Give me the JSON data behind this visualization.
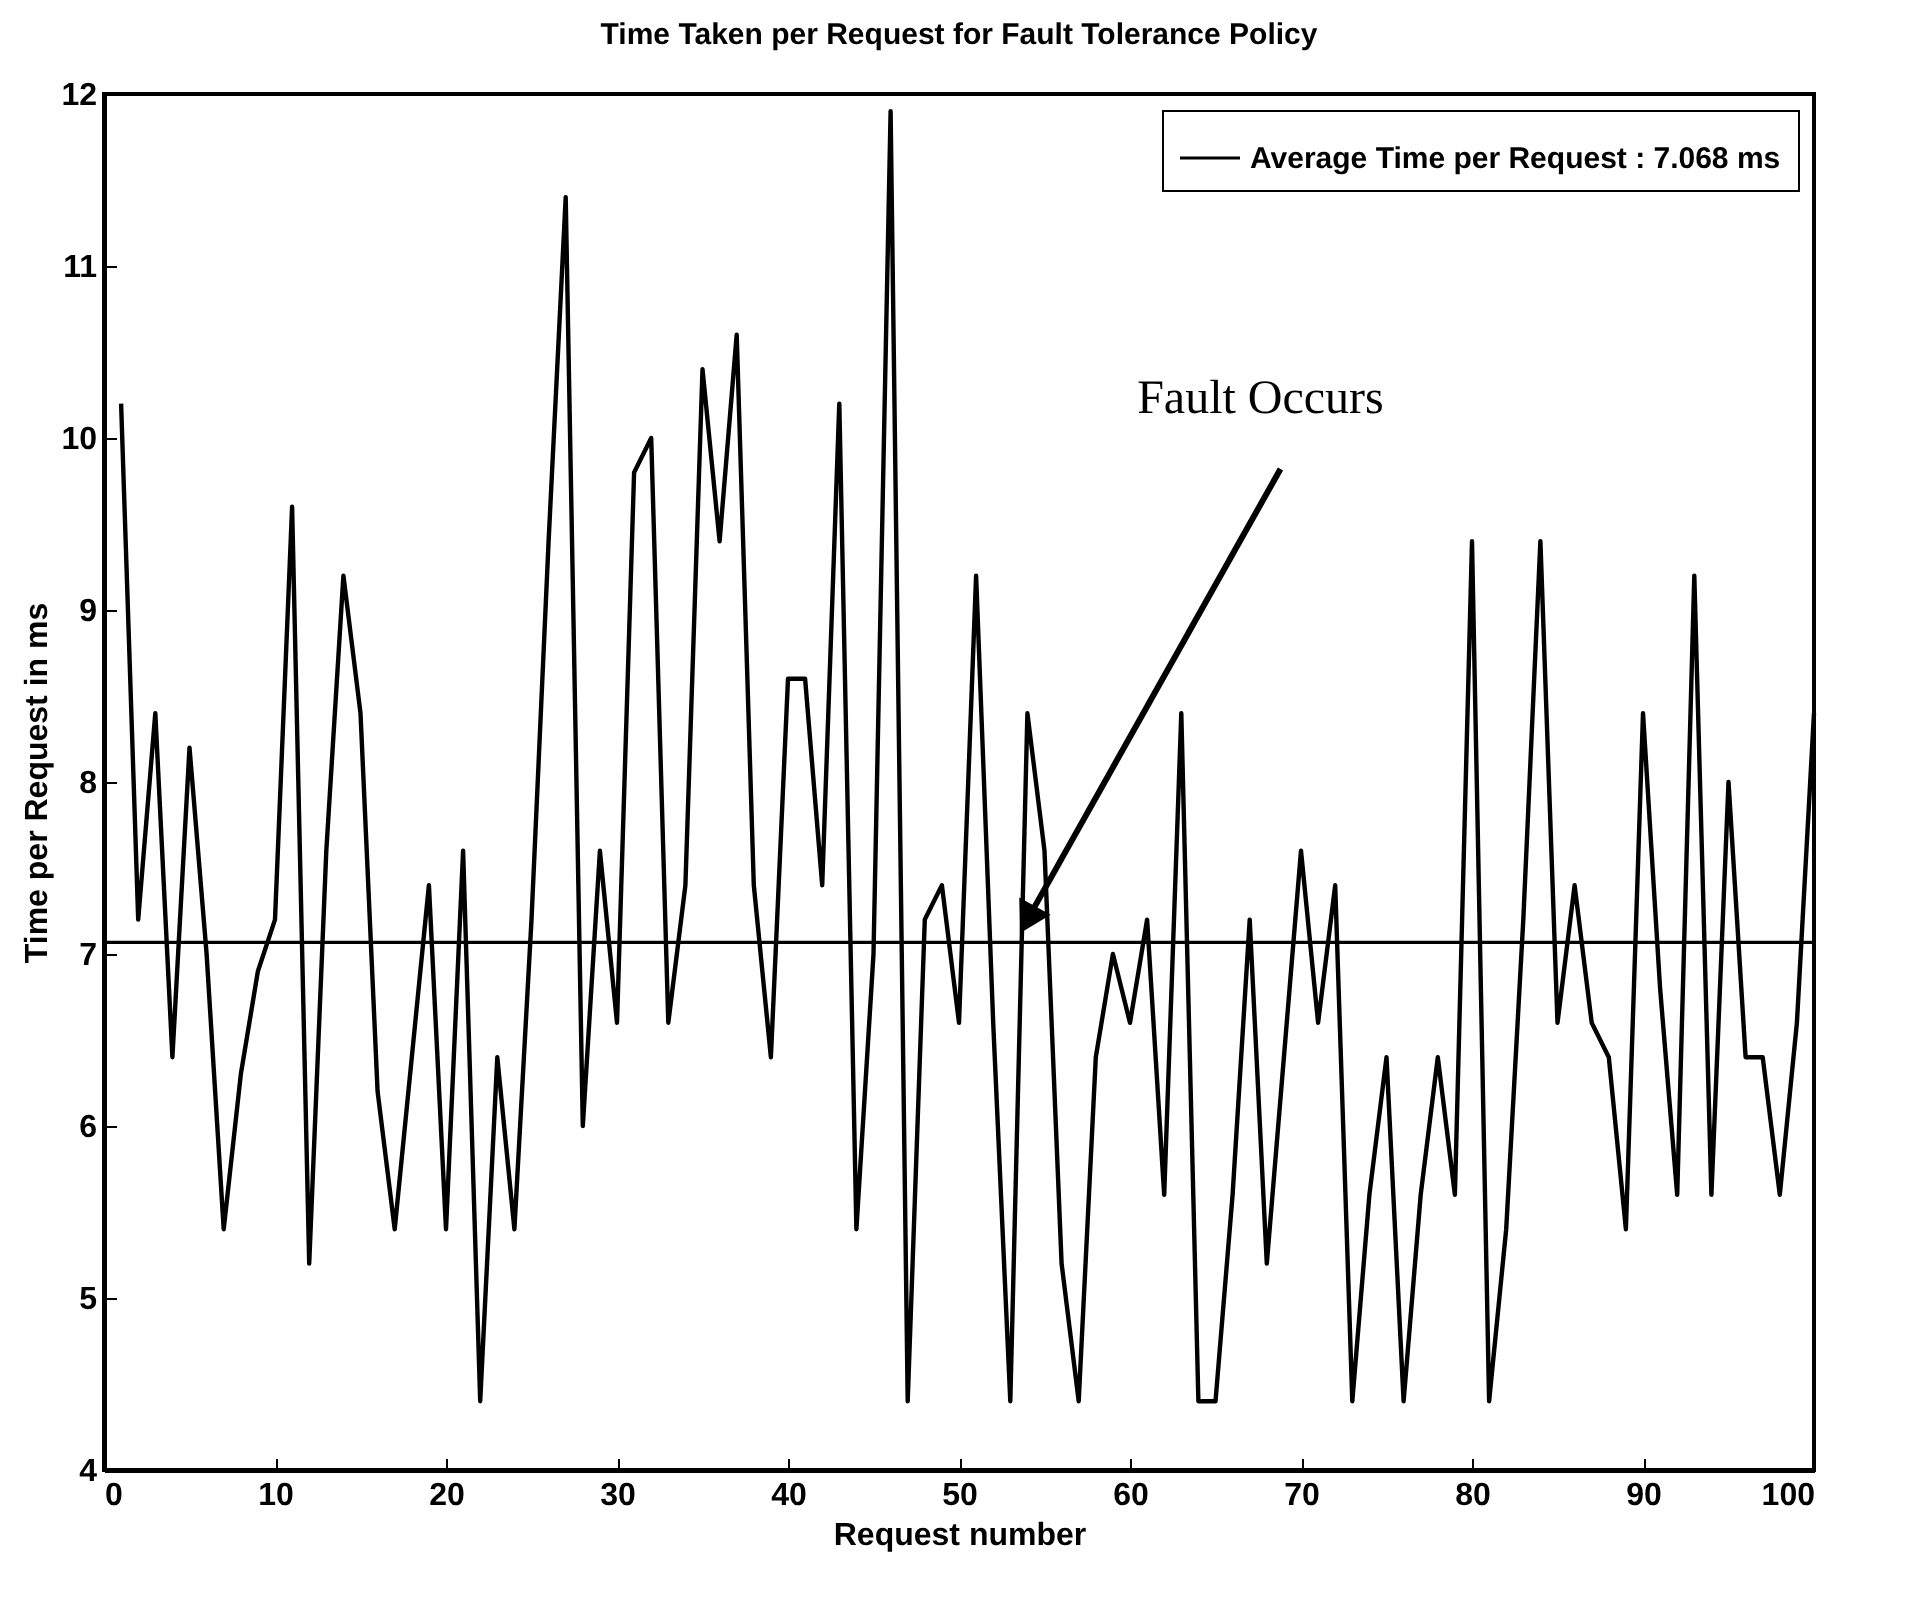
{
  "chart_data": {
    "type": "line",
    "title": "Time Taken per Request for Fault Tolerance Policy",
    "xlabel": "Request number",
    "ylabel": "Time per Request in ms",
    "xlim": [
      0,
      100
    ],
    "xticks": [
      0,
      10,
      20,
      30,
      40,
      50,
      60,
      70,
      80,
      90,
      100
    ],
    "ylim": [
      4,
      12
    ],
    "yticks": [
      4,
      5,
      6,
      7,
      8,
      9,
      10,
      11,
      12
    ],
    "grid": false,
    "legend": "top right",
    "marker": "none",
    "line_style": "solid",
    "annotations": [
      {
        "text": "Fault Occurs",
        "x": 54,
        "y": 7.2
      }
    ],
    "series": [
      {
        "color": "#000000",
        "x": [
          1,
          2,
          3,
          4,
          5,
          6,
          7,
          8,
          9,
          10,
          11,
          12,
          13,
          14,
          15,
          16,
          17,
          18,
          19,
          20,
          21,
          22,
          23,
          24,
          25,
          26,
          27,
          28,
          29,
          30,
          31,
          32,
          33,
          34,
          35,
          36,
          37,
          38,
          39,
          40,
          41,
          42,
          43,
          44,
          45,
          46,
          47,
          48,
          49,
          50,
          51,
          52,
          53,
          54,
          55,
          56,
          57,
          58,
          59,
          60,
          61,
          62,
          63,
          64,
          65,
          66,
          67,
          68,
          69,
          70,
          71,
          72,
          73,
          74,
          75,
          76,
          77,
          78,
          79,
          80,
          81,
          82,
          83,
          84,
          85,
          86,
          87,
          88,
          89,
          90,
          91,
          92,
          93,
          94,
          95,
          96,
          97,
          98,
          99,
          100
        ],
        "values": [
          10.2,
          7.2,
          8.4,
          6.4,
          8.2,
          7.0,
          5.4,
          6.3,
          6.9,
          7.2,
          9.6,
          5.2,
          7.6,
          9.2,
          8.4,
          6.2,
          5.4,
          6.4,
          7.4,
          5.4,
          7.6,
          4.4,
          6.4,
          5.4,
          7.2,
          9.4,
          11.4,
          6.0,
          7.6,
          6.6,
          9.8,
          10.0,
          6.6,
          7.4,
          10.4,
          9.4,
          10.6,
          7.4,
          6.4,
          8.6,
          8.6,
          7.4,
          10.2,
          5.4,
          7.0,
          11.9,
          4.4,
          7.2,
          7.4,
          6.6,
          9.2,
          6.6,
          4.4,
          8.4,
          7.6,
          5.2,
          4.4,
          6.4,
          7.0,
          6.6,
          7.2,
          5.6,
          8.4,
          4.4,
          4.4,
          5.6,
          7.2,
          5.2,
          6.4,
          7.6,
          6.6,
          7.4,
          4.4,
          5.6,
          6.4,
          4.4,
          5.6,
          6.4,
          5.6,
          9.4,
          4.4,
          5.4,
          7.2,
          9.4,
          6.6,
          7.4,
          6.6,
          6.4,
          5.4,
          8.4,
          6.8,
          5.6,
          9.2,
          5.6,
          8.0,
          6.4,
          6.4,
          5.6,
          6.6,
          8.4
        ]
      },
      {
        "name": "Average Time per Request : 7.068 ms",
        "color": "#000000",
        "x": [
          0,
          100
        ],
        "values": [
          7.068,
          7.068
        ]
      }
    ]
  }
}
